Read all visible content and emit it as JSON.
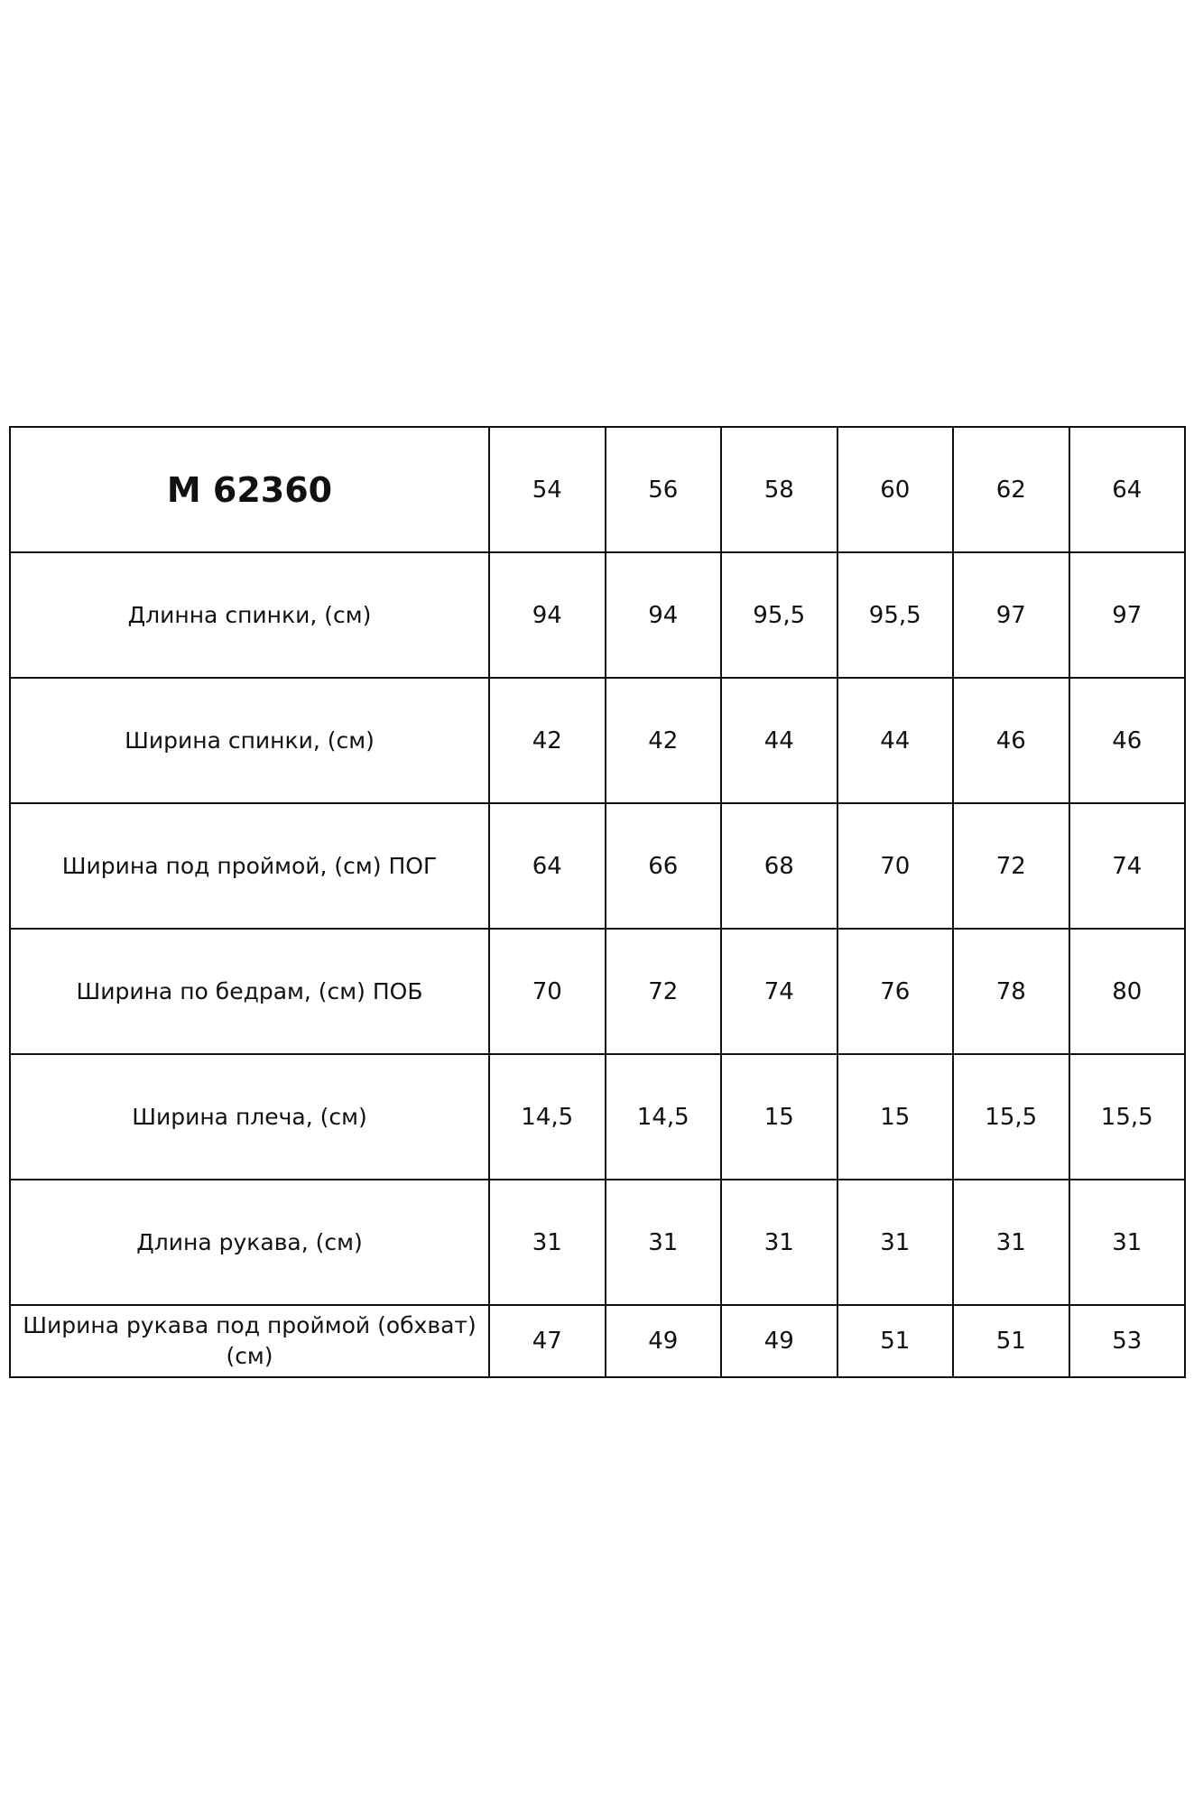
{
  "table": {
    "model": "M 62360",
    "sizes": [
      "54",
      "56",
      "58",
      "60",
      "62",
      "64"
    ],
    "rows": [
      {
        "label": "Длинна спинки, (см)",
        "values": [
          "94",
          "94",
          "95,5",
          "95,5",
          "97",
          "97"
        ]
      },
      {
        "label": "Ширина спинки, (см)",
        "values": [
          "42",
          "42",
          "44",
          "44",
          "46",
          "46"
        ]
      },
      {
        "label": "Ширина под проймой, (см) ПОГ",
        "values": [
          "64",
          "66",
          "68",
          "70",
          "72",
          "74"
        ]
      },
      {
        "label": "Ширина по бедрам, (см) ПОБ",
        "values": [
          "70",
          "72",
          "74",
          "76",
          "78",
          "80"
        ]
      },
      {
        "label": "Ширина плеча, (см)",
        "values": [
          "14,5",
          "14,5",
          "15",
          "15",
          "15,5",
          "15,5"
        ]
      },
      {
        "label": "Длина рукава, (см)",
        "values": [
          "31",
          "31",
          "31",
          "31",
          "31",
          "31"
        ]
      },
      {
        "label": "Ширина рукава под проймой (обхват) (см)",
        "values": [
          "47",
          "49",
          "49",
          "51",
          "51",
          "53"
        ]
      }
    ]
  }
}
